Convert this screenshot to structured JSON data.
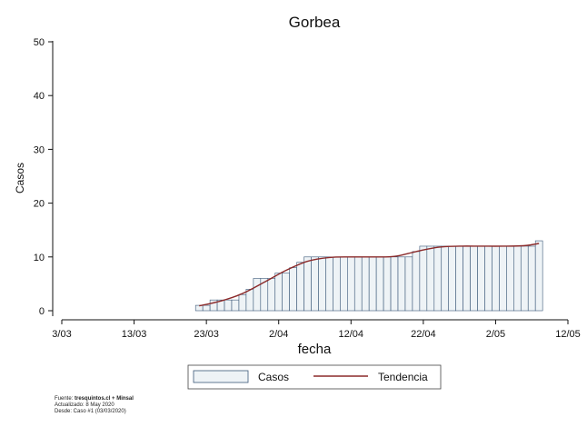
{
  "chart_data": {
    "type": "bar",
    "title": "Gorbea",
    "xlabel": "fecha",
    "ylabel": "Casos",
    "ylim": [
      0,
      50
    ],
    "yticks": [
      0,
      10,
      20,
      30,
      40,
      50
    ],
    "xlim": [
      "2020-03-03",
      "2020-05-12"
    ],
    "xticks": [
      {
        "date": "2020-03-03",
        "label": "3/03"
      },
      {
        "date": "2020-03-13",
        "label": "13/03"
      },
      {
        "date": "2020-03-23",
        "label": "23/03"
      },
      {
        "date": "2020-04-02",
        "label": "2/04"
      },
      {
        "date": "2020-04-12",
        "label": "12/04"
      },
      {
        "date": "2020-04-22",
        "label": "22/04"
      },
      {
        "date": "2020-05-02",
        "label": "2/05"
      },
      {
        "date": "2020-05-12",
        "label": "12/05"
      }
    ],
    "grid": false,
    "legend_position": "bottom",
    "series": [
      {
        "name": "Casos",
        "kind": "bar",
        "fill": "#eef3f6",
        "stroke": "#3b5878",
        "dates": [
          "2020-03-22",
          "2020-03-23",
          "2020-03-24",
          "2020-03-25",
          "2020-03-26",
          "2020-03-27",
          "2020-03-28",
          "2020-03-29",
          "2020-03-30",
          "2020-03-31",
          "2020-04-01",
          "2020-04-02",
          "2020-04-03",
          "2020-04-04",
          "2020-04-05",
          "2020-04-06",
          "2020-04-07",
          "2020-04-08",
          "2020-04-09",
          "2020-04-10",
          "2020-04-11",
          "2020-04-12",
          "2020-04-13",
          "2020-04-14",
          "2020-04-15",
          "2020-04-16",
          "2020-04-17",
          "2020-04-18",
          "2020-04-19",
          "2020-04-20",
          "2020-04-21",
          "2020-04-22",
          "2020-04-23",
          "2020-04-24",
          "2020-04-25",
          "2020-04-26",
          "2020-04-27",
          "2020-04-28",
          "2020-04-29",
          "2020-04-30",
          "2020-05-01",
          "2020-05-02",
          "2020-05-03",
          "2020-05-04",
          "2020-05-05",
          "2020-05-06",
          "2020-05-07",
          "2020-05-08"
        ],
        "values": [
          1,
          1,
          2,
          2,
          2,
          2,
          3,
          4,
          6,
          6,
          6,
          7,
          7,
          8,
          9,
          10,
          10,
          10,
          10,
          10,
          10,
          10,
          10,
          10,
          10,
          10,
          10,
          10,
          10,
          10,
          11,
          12,
          12,
          12,
          12,
          12,
          12,
          12,
          12,
          12,
          12,
          12,
          12,
          12,
          12,
          12,
          12,
          13
        ]
      },
      {
        "name": "Tendencia",
        "kind": "line",
        "color": "#8b2a2a",
        "dates": [
          "2020-03-22",
          "2020-03-25",
          "2020-03-28",
          "2020-03-31",
          "2020-04-03",
          "2020-04-06",
          "2020-04-09",
          "2020-04-12",
          "2020-04-15",
          "2020-04-18",
          "2020-04-21",
          "2020-04-24",
          "2020-04-27",
          "2020-04-30",
          "2020-05-03",
          "2020-05-06",
          "2020-05-08"
        ],
        "values": [
          0.9,
          1.8,
          3.2,
          5.3,
          7.5,
          9.2,
          9.9,
          10.0,
          10.0,
          10.1,
          11.0,
          11.8,
          12.0,
          12.0,
          12.0,
          12.1,
          12.5
        ]
      }
    ]
  },
  "footer": {
    "source_label": "Fuente: ",
    "source_value": "tresquintos.cl + Minsal",
    "updated": "Actualizado: 8 May 2020",
    "since": "Desde: Caso #1  (03/03/2020)"
  }
}
